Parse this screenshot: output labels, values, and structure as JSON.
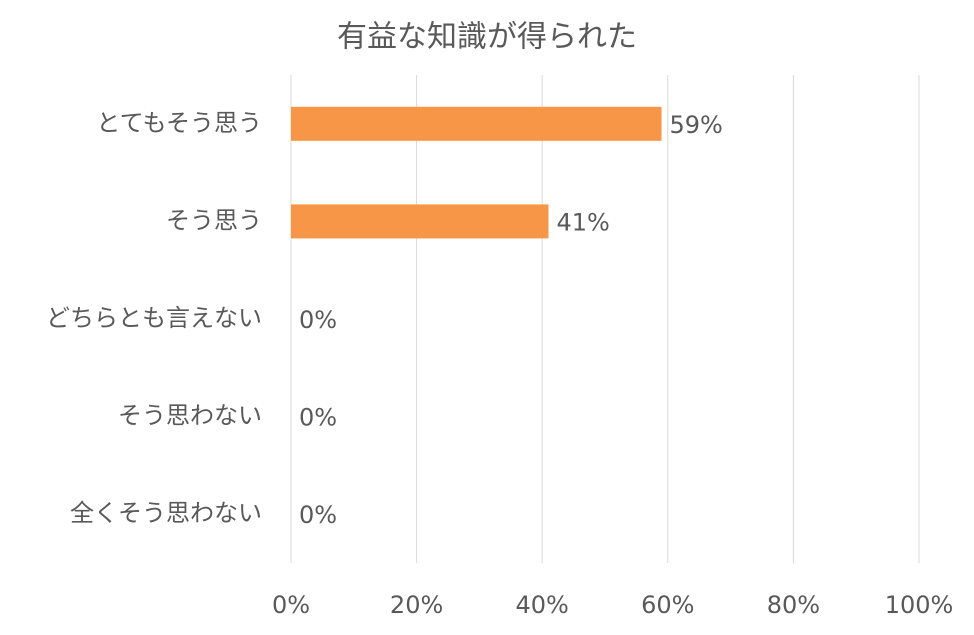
{
  "chart_data": {
    "type": "barh",
    "title": "有益な知識が得られた",
    "categories": [
      "とてもそう思う",
      "そう思う",
      "どちらとも言えない",
      "そう思わない",
      "全くそう思わない"
    ],
    "values": [
      59,
      41,
      0,
      0,
      0
    ],
    "value_labels": [
      "59%",
      "41%",
      "0%",
      "0%",
      "0%"
    ],
    "color": "#f79646",
    "xlim": [
      0,
      100
    ],
    "xticks": [
      {
        "value": 0,
        "label": "0%"
      },
      {
        "value": 20,
        "label": "20%"
      },
      {
        "value": 40,
        "label": "40%"
      },
      {
        "value": 60,
        "label": "60%"
      },
      {
        "value": 80,
        "label": "80%"
      },
      {
        "value": 100,
        "label": "100%"
      }
    ],
    "grid": true
  }
}
